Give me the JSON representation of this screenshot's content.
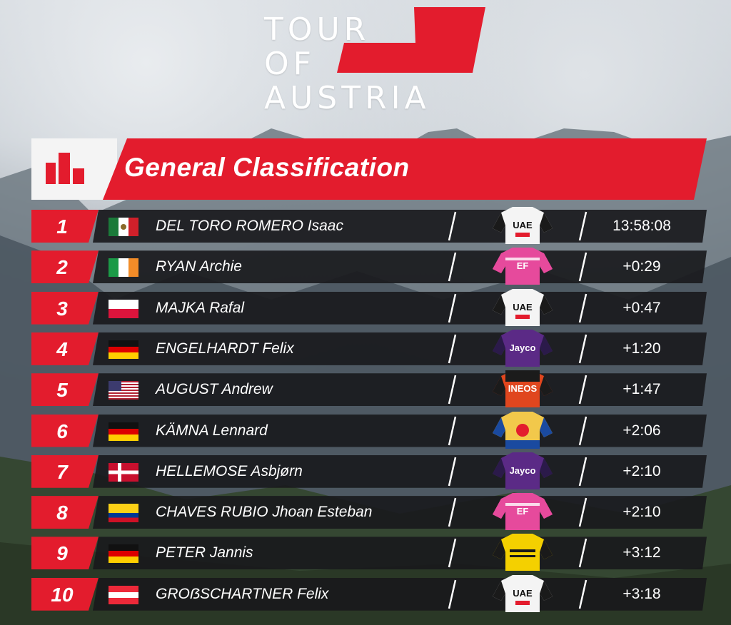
{
  "logo": {
    "line1": "TOUR",
    "line2": "OF",
    "line3": "AUSTRIA"
  },
  "header": {
    "title": "General Classification",
    "icon": "podium-icon"
  },
  "colors": {
    "accent": "#e31c2d",
    "row_bg": "#18181c",
    "text": "#ffffff"
  },
  "standings": [
    {
      "rank": "1",
      "name": "DEL TORO ROMERO Isaac",
      "time": "13:58:08",
      "flag": "mexico",
      "jersey": "uae"
    },
    {
      "rank": "2",
      "name": "RYAN Archie",
      "time": "+0:29",
      "flag": "ireland",
      "jersey": "ef"
    },
    {
      "rank": "3",
      "name": "MAJKA Rafal",
      "time": "+0:47",
      "flag": "poland",
      "jersey": "uae"
    },
    {
      "rank": "4",
      "name": "ENGELHARDT Felix",
      "time": "+1:20",
      "flag": "germany",
      "jersey": "jayco"
    },
    {
      "rank": "5",
      "name": "AUGUST Andrew",
      "time": "+1:47",
      "flag": "usa",
      "jersey": "ineos"
    },
    {
      "rank": "6",
      "name": "KÄMNA Lennard",
      "time": "+2:06",
      "flag": "germany",
      "jersey": "lidl"
    },
    {
      "rank": "7",
      "name": "HELLEMOSE Asbjørn",
      "time": "+2:10",
      "flag": "denmark",
      "jersey": "jayco"
    },
    {
      "rank": "8",
      "name": "CHAVES RUBIO Jhoan Esteban",
      "time": "+2:10",
      "flag": "colombia",
      "jersey": "ef"
    },
    {
      "rank": "9",
      "name": "PETER Jannis",
      "time": "+3:12",
      "flag": "germany",
      "jersey": "visma"
    },
    {
      "rank": "10",
      "name": "GROẞSCHARTNER Felix",
      "time": "+3:18",
      "flag": "austria",
      "jersey": "uae"
    }
  ],
  "jersey_texts": {
    "uae": "UAE",
    "jayco": "Jayco",
    "ineos": "INEOS",
    "ef": "EF"
  }
}
